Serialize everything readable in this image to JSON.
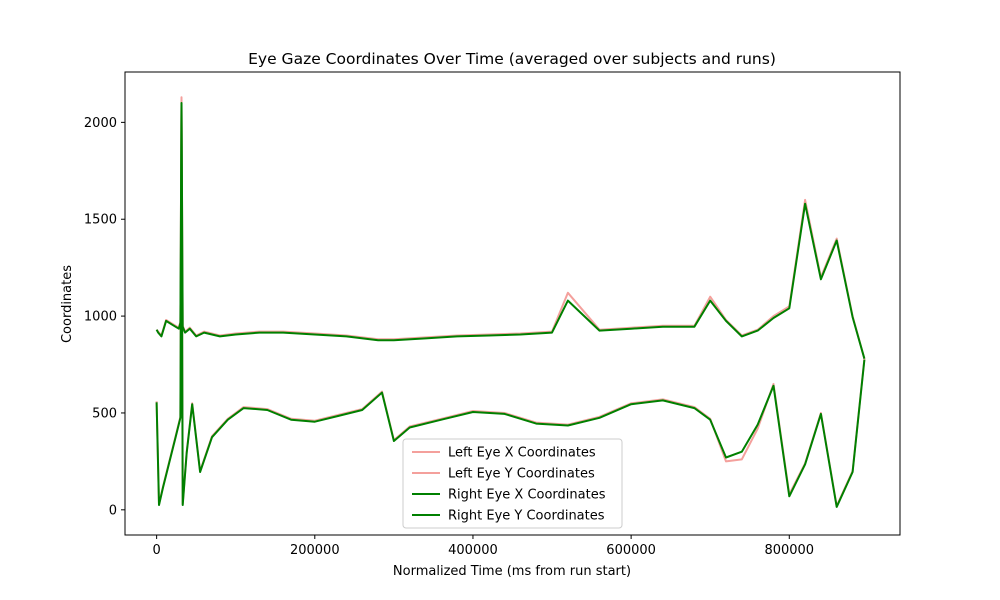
{
  "chart_data": {
    "type": "line",
    "title": "Eye Gaze Coordinates Over Time (averaged over subjects and runs)",
    "xlabel": "Normalized Time (ms from run start)",
    "ylabel": "Coordinates",
    "xlim": [
      -40000,
      940000
    ],
    "ylim": [
      -130,
      2260
    ],
    "x_ticks": [
      0,
      200000,
      400000,
      600000,
      800000
    ],
    "x_tick_labels": [
      "0",
      "200000",
      "400000",
      "600000",
      "800000"
    ],
    "y_ticks": [
      0,
      500,
      1000,
      1500,
      2000
    ],
    "y_tick_labels": [
      "0",
      "500",
      "1000",
      "1500",
      "2000"
    ],
    "grid": false,
    "legend_position": "lower-center",
    "series": [
      {
        "name": "Left Eye X Coordinates",
        "color": "#f4a09c",
        "x": [
          0,
          2000,
          6000,
          12000,
          20000,
          28000,
          30000,
          31500,
          33000,
          36000,
          42000,
          50000,
          60000,
          80000,
          100000,
          130000,
          160000,
          200000,
          240000,
          280000,
          300000,
          340000,
          380000,
          420000,
          460000,
          500000,
          520000,
          560000,
          600000,
          640000,
          680000,
          700000,
          720000,
          740000,
          760000,
          780000,
          800000,
          820000,
          840000,
          860000,
          880000,
          895000
        ],
        "values": [
          930,
          920,
          900,
          980,
          960,
          940,
          970,
          2130,
          950,
          920,
          940,
          900,
          920,
          900,
          910,
          920,
          920,
          910,
          900,
          880,
          880,
          890,
          900,
          905,
          910,
          920,
          1120,
          930,
          940,
          950,
          950,
          1100,
          980,
          900,
          930,
          1000,
          1050,
          1600,
          1200,
          1400,
          1000,
          780
        ]
      },
      {
        "name": "Left Eye Y Coordinates",
        "color": "#f4a09c",
        "x": [
          0,
          3000,
          8000,
          16000,
          24000,
          30000,
          31500,
          33000,
          38000,
          45000,
          55000,
          70000,
          90000,
          110000,
          140000,
          170000,
          200000,
          230000,
          260000,
          285000,
          300000,
          320000,
          360000,
          400000,
          440000,
          480000,
          520000,
          560000,
          600000,
          640000,
          680000,
          700000,
          720000,
          740000,
          760000,
          780000,
          800000,
          820000,
          840000,
          860000,
          880000,
          895000
        ],
        "values": [
          560,
          30,
          120,
          250,
          380,
          480,
          2100,
          30,
          300,
          550,
          200,
          380,
          470,
          530,
          520,
          470,
          460,
          490,
          520,
          610,
          360,
          430,
          470,
          510,
          500,
          450,
          440,
          480,
          550,
          570,
          530,
          470,
          250,
          260,
          420,
          650,
          80,
          240,
          500,
          20,
          200,
          780
        ]
      },
      {
        "name": "Right Eye X Coordinates",
        "color": "#008000",
        "x": [
          0,
          2000,
          6000,
          12000,
          20000,
          28000,
          30000,
          31500,
          33000,
          36000,
          42000,
          50000,
          60000,
          80000,
          100000,
          130000,
          160000,
          200000,
          240000,
          280000,
          300000,
          340000,
          380000,
          420000,
          460000,
          500000,
          520000,
          560000,
          600000,
          640000,
          680000,
          700000,
          720000,
          740000,
          760000,
          780000,
          800000,
          820000,
          840000,
          860000,
          880000,
          895000
        ],
        "values": [
          930,
          915,
          895,
          975,
          955,
          935,
          965,
          2100,
          945,
          915,
          935,
          895,
          915,
          895,
          905,
          915,
          915,
          905,
          895,
          875,
          875,
          885,
          895,
          900,
          905,
          915,
          1080,
          925,
          935,
          945,
          945,
          1080,
          975,
          895,
          925,
          990,
          1040,
          1580,
          1190,
          1390,
          995,
          780
        ]
      },
      {
        "name": "Right Eye Y Coordinates",
        "color": "#008000",
        "x": [
          0,
          3000,
          8000,
          16000,
          24000,
          30000,
          31500,
          33000,
          38000,
          45000,
          55000,
          70000,
          90000,
          110000,
          140000,
          170000,
          200000,
          230000,
          260000,
          285000,
          300000,
          320000,
          360000,
          400000,
          440000,
          480000,
          520000,
          560000,
          600000,
          640000,
          680000,
          700000,
          720000,
          740000,
          760000,
          780000,
          800000,
          820000,
          840000,
          860000,
          880000,
          895000
        ],
        "values": [
          555,
          25,
          115,
          245,
          375,
          475,
          2090,
          25,
          295,
          545,
          195,
          375,
          465,
          525,
          515,
          465,
          455,
          485,
          515,
          605,
          355,
          425,
          465,
          505,
          495,
          445,
          435,
          475,
          545,
          565,
          525,
          465,
          270,
          300,
          440,
          640,
          70,
          235,
          495,
          15,
          195,
          775
        ]
      }
    ]
  }
}
